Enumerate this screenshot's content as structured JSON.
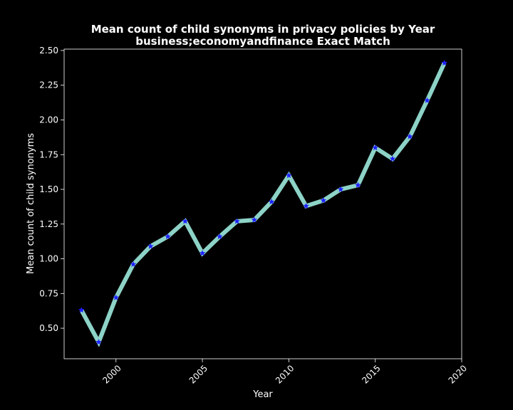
{
  "chart_data": {
    "type": "line",
    "title": "Mean count of child synonyms in privacy policies by Year",
    "subtitle": "business;economyandfinance Exact Match",
    "xlabel": "Year",
    "ylabel": "Mean count of child synonyms",
    "xlim": [
      1997,
      2020
    ],
    "ylim": [
      0.28,
      2.51
    ],
    "xticks": [
      "2000",
      "2005",
      "2010",
      "2015",
      "2020"
    ],
    "yticks": [
      "0.50",
      "0.75",
      "1.00",
      "1.25",
      "1.50",
      "1.75",
      "2.00",
      "2.25",
      "2.50"
    ],
    "grid": false,
    "line_color": "#8dd3c7",
    "marker_color": "#1f1fff",
    "marker": "star",
    "series": [
      {
        "x": [
          1998,
          1999,
          2000,
          2001,
          2002,
          2003,
          2004,
          2005,
          2006,
          2007,
          2008,
          2009,
          2010,
          2011,
          2012,
          2013,
          2014,
          2015,
          2016,
          2017,
          2018,
          2019
        ],
        "values": [
          0.63,
          0.4,
          0.72,
          0.96,
          1.09,
          1.16,
          1.27,
          1.04,
          1.16,
          1.27,
          1.28,
          1.41,
          1.6,
          1.38,
          1.42,
          1.5,
          1.53,
          1.8,
          1.72,
          1.88,
          2.14,
          2.41
        ]
      }
    ]
  }
}
